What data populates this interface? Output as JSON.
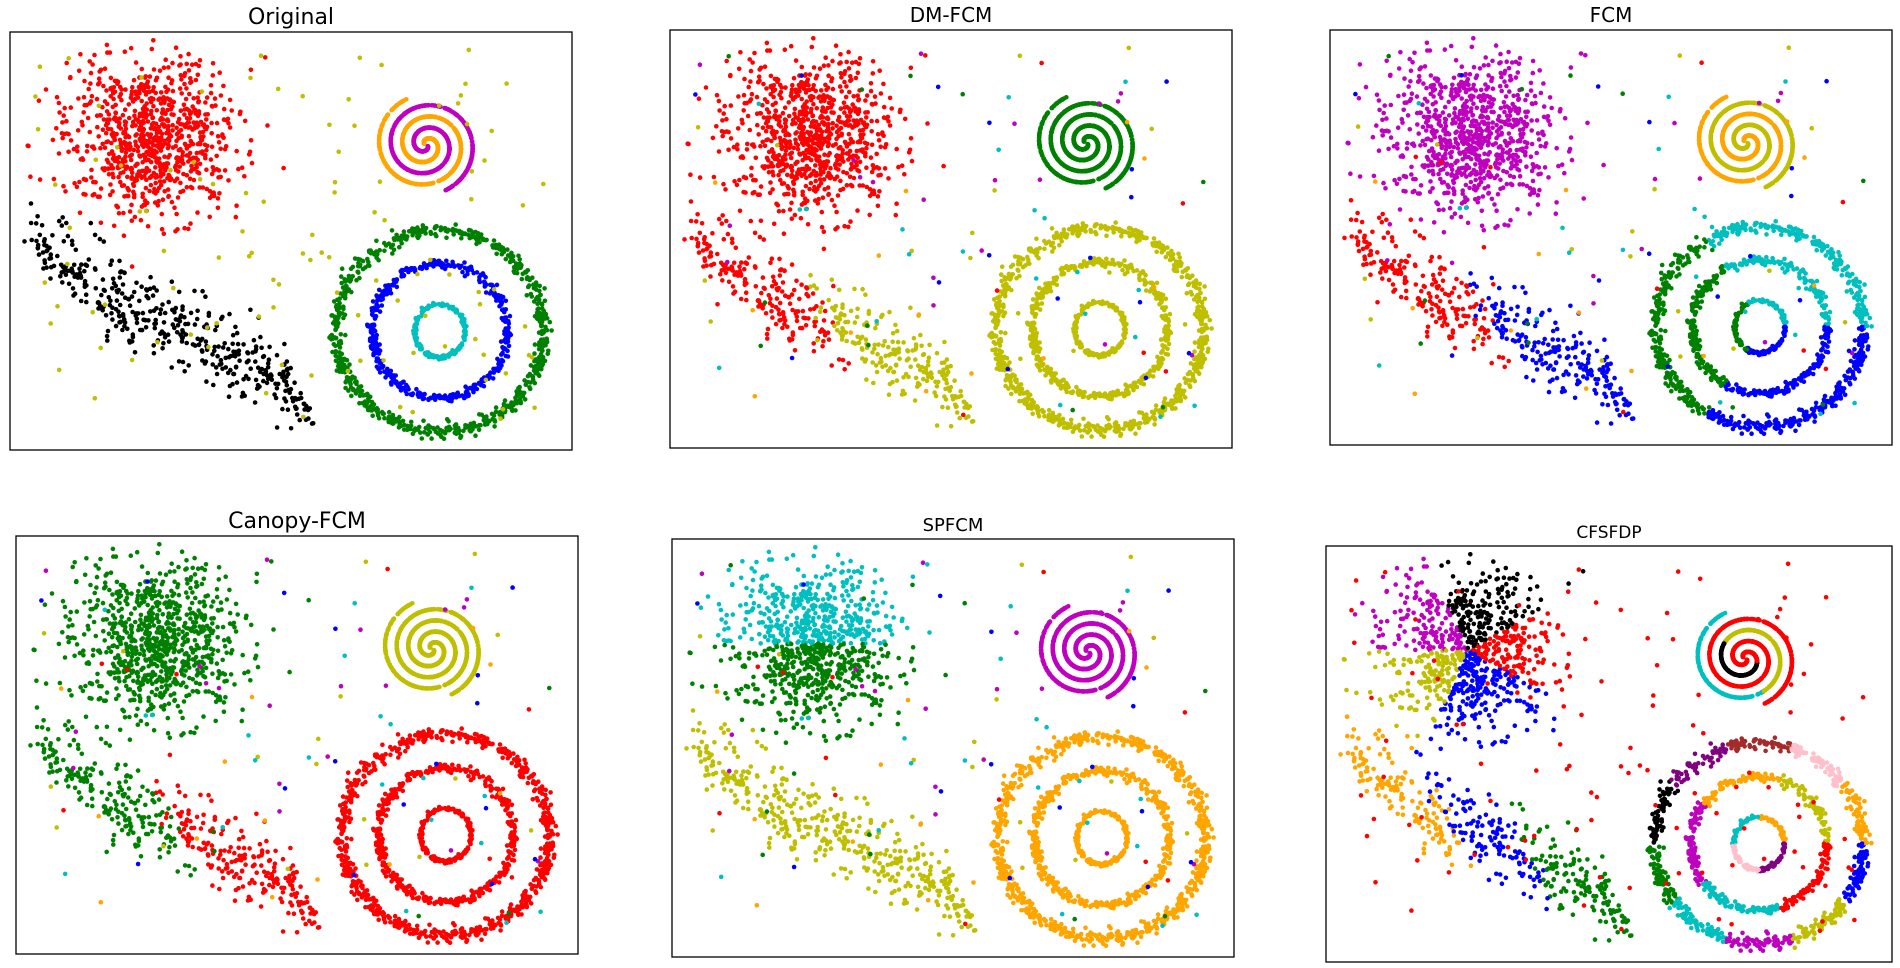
{
  "colors": {
    "red": "#ff0000",
    "green": "#008000",
    "blue": "#0000ff",
    "cyan": "#00bfbf",
    "magenta": "#bf00bf",
    "yellow": "#bfbf00",
    "black": "#000000",
    "orange": "#ffa500",
    "pink": "#ffc0cb",
    "purple": "#800080",
    "brown": "#a52a2a"
  },
  "chart_data": [
    {
      "type": "scatter",
      "title": "Original",
      "clusters": {
        "gauss": "red",
        "ellipse": "black",
        "spiralA": "magenta",
        "spiralB": "orange",
        "ringOuter": "green",
        "ringMid": "blue",
        "ringInner": "cyan",
        "noise": "yellow"
      }
    },
    {
      "type": "scatter",
      "title": "DM-FCM",
      "clusters": {
        "gauss": "red",
        "ellipse": "split:red|yellow",
        "spiralA": "green",
        "spiralB": "green",
        "ringOuter": "yellow",
        "ringMid": "yellow",
        "ringInner": "yellow",
        "noise": "mixed"
      }
    },
    {
      "type": "scatter",
      "title": "FCM",
      "clusters": {
        "gauss": "magenta",
        "ellipse": "split:red|blue",
        "spiralA": "yellow",
        "spiralB": "orange",
        "ringOuter": "split:blue|green|cyan",
        "ringMid": "split:blue|green|cyan",
        "ringInner": "split:blue|green|cyan",
        "noise": "mixed"
      }
    },
    {
      "type": "scatter",
      "title": "Canopy-FCM",
      "clusters": {
        "gauss": "green",
        "ellipse": "split:green|red",
        "spiralA": "yellow",
        "spiralB": "yellow",
        "ringOuter": "red",
        "ringMid": "red",
        "ringInner": "red",
        "noise": "mixed"
      }
    },
    {
      "type": "scatter",
      "title": "SPFCM",
      "clusters": {
        "gauss": "split:cyan|green",
        "ellipse": "yellow",
        "spiralA": "magenta",
        "spiralB": "magenta",
        "ringOuter": "orange",
        "ringMid": "orange",
        "ringInner": "orange",
        "noise": "mixed"
      }
    },
    {
      "type": "scatter",
      "title": "CFSFDP",
      "clusters": {
        "gauss": "split:magenta|black|red|blue|yellow",
        "ellipse": "split:orange|blue|green",
        "spiralA": "red",
        "spiralB": "split:red|black|yellow|cyan",
        "ringOuter": "split:blue|yellow|magenta|cyan|green|black|purple|brown|pink|orange",
        "ringMid": "split:red|cyan|magenta|orange|yellow",
        "ringInner": "split:purple|pink|cyan|orange",
        "noise": "red"
      }
    }
  ]
}
